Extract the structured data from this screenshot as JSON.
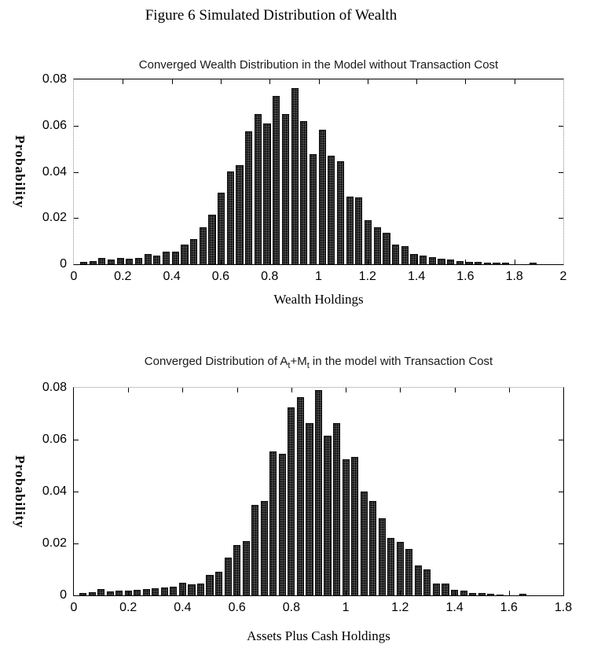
{
  "figure_title": "Figure 6 Simulated Distribution of Wealth",
  "colors": {
    "bar_fill": "#4a4a4a",
    "bar_dot_texture": "#000000",
    "bar_border": "#050505",
    "axis": "#000000",
    "dotted_box_edge": "#8a8a8a",
    "background": "#ffffff"
  },
  "chart_data": [
    {
      "type": "bar",
      "title": "Converged Wealth Distribution in the Model without Transaction Cost",
      "xlabel": "Wealth Holdings",
      "ylabel": "Probability",
      "xlim": [
        0,
        2
      ],
      "ylim": [
        0,
        0.08
      ],
      "grid": false,
      "legend": null,
      "box_style_hint": "left and right box edges dotted, ticks point inward on all sides",
      "bin_width": 0.0375,
      "xticks": [
        0,
        0.2,
        0.4,
        0.6,
        0.8,
        1,
        1.2,
        1.4,
        1.6,
        1.8,
        2
      ],
      "xtick_labels": [
        "0",
        "0.2",
        "0.4",
        "0.6",
        "0.8",
        "1",
        "1.2",
        "1.4",
        "1.6",
        "1.8",
        "2"
      ],
      "yticks": [
        0,
        0.02,
        0.04,
        0.06,
        0.08
      ],
      "ytick_labels": [
        "0",
        "0.02",
        "0.04",
        "0.06",
        "0.08"
      ],
      "x": [
        0.04,
        0.0775,
        0.115,
        0.1525,
        0.19,
        0.2275,
        0.265,
        0.3025,
        0.34,
        0.3775,
        0.415,
        0.4525,
        0.49,
        0.5275,
        0.565,
        0.6025,
        0.64,
        0.6775,
        0.715,
        0.7525,
        0.79,
        0.8275,
        0.865,
        0.9025,
        0.94,
        0.9775,
        1.015,
        1.0525,
        1.09,
        1.1275,
        1.165,
        1.2025,
        1.24,
        1.2775,
        1.315,
        1.3525,
        1.39,
        1.4275,
        1.465,
        1.5025,
        1.54,
        1.5775,
        1.615,
        1.6525,
        1.69,
        1.7275,
        1.765,
        1.8775
      ],
      "heights": [
        0.001,
        0.0013,
        0.0028,
        0.0021,
        0.0028,
        0.0024,
        0.0027,
        0.0043,
        0.0038,
        0.0053,
        0.0053,
        0.0086,
        0.011,
        0.016,
        0.0215,
        0.031,
        0.0402,
        0.043,
        0.0575,
        0.065,
        0.061,
        0.0728,
        0.065,
        0.0762,
        0.062,
        0.0478,
        0.0582,
        0.047,
        0.0445,
        0.0292,
        0.029,
        0.0192,
        0.016,
        0.0135,
        0.0086,
        0.008,
        0.0046,
        0.0038,
        0.003,
        0.0025,
        0.002,
        0.0015,
        0.0012,
        0.001,
        0.0006,
        0.0006,
        0.0006,
        0.0006
      ]
    },
    {
      "type": "bar",
      "title": "Converged Distribution of At+Mt in the model with Transaction Cost",
      "title_parts": {
        "p1": "Converged Distribution of A",
        "s1": "t",
        "p2": "+M",
        "s2": "t",
        "p3": " in the model with Transaction Cost"
      },
      "xlabel": "Assets Plus Cash Holdings",
      "ylabel": "Probability",
      "xlim": [
        0,
        1.8
      ],
      "ylim": [
        0,
        0.08
      ],
      "grid": false,
      "legend": null,
      "box_style_hint": "top box edge dotted, ticks point inward on all sides",
      "bin_width": 0.0333,
      "xticks": [
        0,
        0.2,
        0.4,
        0.6,
        0.8,
        1,
        1.2,
        1.4,
        1.6,
        1.8
      ],
      "xtick_labels": [
        "0",
        "0.2",
        "0.4",
        "0.6",
        "0.8",
        "1",
        "1.2",
        "1.4",
        "1.6",
        "1.8"
      ],
      "yticks": [
        0,
        0.02,
        0.04,
        0.06,
        0.08
      ],
      "ytick_labels": [
        "0",
        "0.02",
        "0.04",
        "0.06",
        "0.08"
      ],
      "x": [
        0.0333,
        0.0667,
        0.1,
        0.1333,
        0.1667,
        0.2,
        0.2333,
        0.2667,
        0.3,
        0.3333,
        0.3667,
        0.4,
        0.4333,
        0.4667,
        0.5,
        0.5333,
        0.5667,
        0.6,
        0.6333,
        0.6667,
        0.7,
        0.7333,
        0.7667,
        0.8,
        0.8333,
        0.8667,
        0.9,
        0.9333,
        0.9667,
        1.0,
        1.0333,
        1.0667,
        1.1,
        1.1333,
        1.1667,
        1.2,
        1.2333,
        1.2667,
        1.3,
        1.3333,
        1.3667,
        1.4,
        1.4333,
        1.4667,
        1.5,
        1.5333,
        1.5667,
        1.65
      ],
      "heights": [
        0.0008,
        0.0012,
        0.0025,
        0.0015,
        0.0018,
        0.0018,
        0.0022,
        0.0023,
        0.0028,
        0.003,
        0.0033,
        0.005,
        0.0044,
        0.0046,
        0.0078,
        0.009,
        0.0145,
        0.0195,
        0.021,
        0.035,
        0.0365,
        0.0555,
        0.0545,
        0.0725,
        0.0765,
        0.0665,
        0.079,
        0.0615,
        0.0665,
        0.0525,
        0.0535,
        0.04,
        0.0365,
        0.0298,
        0.022,
        0.0205,
        0.018,
        0.0115,
        0.01,
        0.0045,
        0.0047,
        0.0021,
        0.0019,
        0.001,
        0.0008,
        0.0005,
        0.0003,
        0.0005
      ]
    }
  ]
}
